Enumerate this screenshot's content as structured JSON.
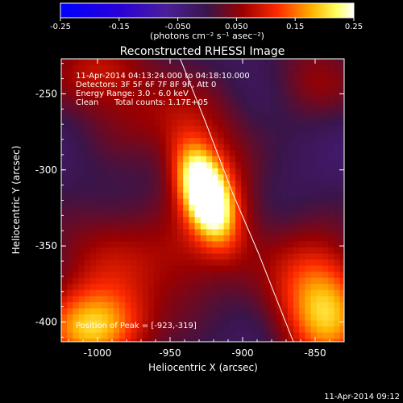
{
  "chart_data": {
    "type": "heatmap",
    "title": "Reconstructed RHESSI Image",
    "xlabel": "Heliocentric X (arcsec)",
    "ylabel": "Heliocentric Y (arcsec)",
    "xlim": [
      -1025,
      -830
    ],
    "ylim": [
      -413,
      -227
    ],
    "x_ticks": [
      -1000,
      -950,
      -900,
      -850
    ],
    "y_ticks": [
      -400,
      -350,
      -300,
      -250
    ],
    "colorbar": {
      "range": [
        -0.25,
        0.25
      ],
      "ticks": [
        "-0.25",
        "-0.15",
        "-0.050",
        "0.050",
        "0.15",
        "0.25"
      ],
      "tick_values": [
        -0.25,
        -0.15,
        -0.05,
        0.05,
        0.15,
        0.25
      ],
      "units_label": "(photons cm⁻² s⁻¹ asec⁻²)"
    },
    "annotations": {
      "time_range": "11-Apr-2014 04:13:24.000 to 04:18:10.000",
      "detectors": "Detectors: 3F 5F 6F 7F 8F 9F, Att 0",
      "energy_range": "Energy Range: 3.0 - 6.0 keV",
      "clean_label": "Clean",
      "total_counts": "Total counts: 1.17E+05",
      "peak_position": "Position of Peak = [-923,-319]"
    },
    "peak": {
      "x": -923,
      "y": -319,
      "value": 0.25
    },
    "limb_curve": [
      {
        "x": -943,
        "y": -227
      },
      {
        "x": -925,
        "y": -270
      },
      {
        "x": -907,
        "y": -315
      },
      {
        "x": -889,
        "y": -355
      },
      {
        "x": -865,
        "y": -413
      }
    ],
    "sources": [
      {
        "x": -926,
        "y": -315,
        "amp": 0.28,
        "sx": 11,
        "sy": 22,
        "rot_deg": -22
      },
      {
        "x": -918,
        "y": -305,
        "amp": 0.1,
        "sx": 20,
        "sy": 38,
        "rot_deg": -15
      },
      {
        "x": -1003,
        "y": -405,
        "amp": 0.2,
        "sx": 25,
        "sy": 18,
        "rot_deg": 0
      },
      {
        "x": -988,
        "y": -360,
        "amp": 0.09,
        "sx": 35,
        "sy": 30,
        "rot_deg": 0
      },
      {
        "x": -843,
        "y": -395,
        "amp": 0.2,
        "sx": 22,
        "sy": 26,
        "rot_deg": 0
      },
      {
        "x": -1000,
        "y": -235,
        "amp": 0.1,
        "sx": 26,
        "sy": 18,
        "rot_deg": 0
      },
      {
        "x": -858,
        "y": -360,
        "amp": 0.06,
        "sx": 25,
        "sy": 25,
        "rot_deg": 0
      },
      {
        "x": -850,
        "y": -240,
        "amp": 0.07,
        "sx": 22,
        "sy": 20,
        "rot_deg": 0
      },
      {
        "x": -965,
        "y": -265,
        "amp": 0.06,
        "sx": 30,
        "sy": 20,
        "rot_deg": 0
      },
      {
        "x": -935,
        "y": -360,
        "amp": 0.05,
        "sx": 20,
        "sy": 25,
        "rot_deg": 0
      }
    ],
    "grid": false,
    "pixel_size_arcsec": 4
  },
  "footer": {
    "timestamp": "11-Apr-2014 09:12"
  }
}
